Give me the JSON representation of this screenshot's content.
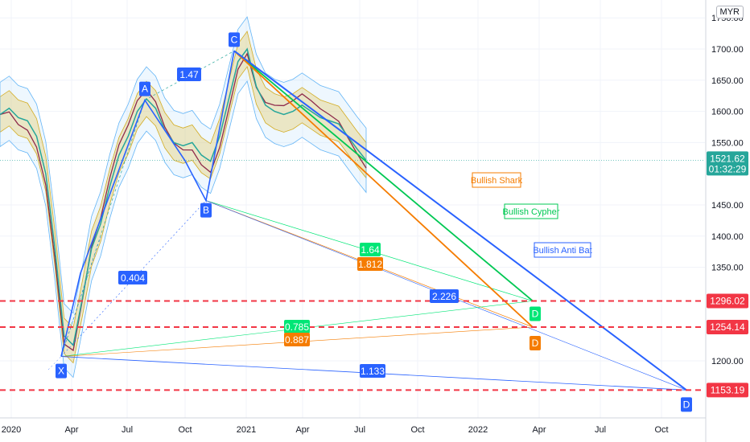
{
  "currency_label": "MYR",
  "colors": {
    "price_label_bg": "#2962ff",
    "level_red": "#f23645",
    "orange": "#f57c00",
    "green": "#00e676",
    "blue": "#2962ff",
    "band_yellow": "#f7d26a"
  },
  "current_price": {
    "value": "1521.62",
    "countdown": "01:32:29"
  },
  "chart_data": {
    "type": "line",
    "y_axis": {
      "ticks": [
        "1750.00",
        "1700.00",
        "1650.00",
        "1600.00",
        "1550.00",
        "1450.00",
        "1400.00",
        "1350.00",
        "1200.00"
      ],
      "range": [
        1140,
        1760
      ]
    },
    "x_axis": {
      "ticks": [
        "2020",
        "Apr",
        "Jul",
        "Oct",
        "2021",
        "Apr",
        "Jul",
        "Oct",
        "2022",
        "Apr",
        "Jul",
        "Oct"
      ]
    },
    "series": [
      {
        "values": [
          1595,
          1605,
          1590,
          1585,
          1560,
          1500,
          1380,
          1240,
          1225,
          1300,
          1380,
          1420,
          1480,
          1530,
          1560,
          1600,
          1620,
          1605,
          1570,
          1550,
          1545,
          1550,
          1530,
          1520,
          1560,
          1620,
          1680,
          1700,
          1640,
          1610,
          1600,
          1595,
          1600,
          1610,
          1600,
          1590,
          1585,
          1580,
          1560,
          1540,
          1521.62
        ]
      }
    ],
    "levels": [
      "1296.02",
      "1254.14",
      "1153.19"
    ],
    "pattern_points": [
      "X",
      "A",
      "B",
      "C",
      "D",
      "D",
      "D"
    ],
    "ratios": [
      "1.47",
      "0.404",
      "1.64",
      "1.812",
      "2.226",
      "0.785",
      "0.887",
      "1.133"
    ],
    "pattern_names": [
      "Bullish Shark",
      "Bullish Cypher",
      "Bullish Anti Bat"
    ]
  }
}
